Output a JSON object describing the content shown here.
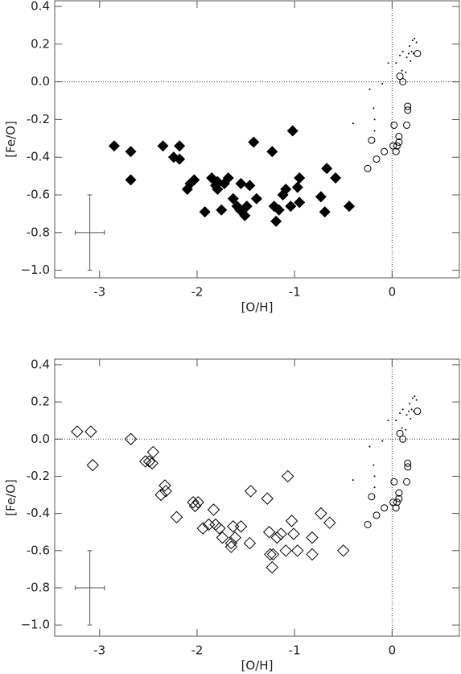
{
  "chart_data": [
    {
      "type": "scatter",
      "x_label": "[O/H]",
      "y_label": "[Fe/O]",
      "xlim": [
        -3.46,
        0.69
      ],
      "ylim": [
        -1.04,
        0.43
      ],
      "xticks": [
        -3,
        -2,
        -1,
        0
      ],
      "yticks": [
        0.4,
        0.2,
        {
          "value": 0,
          "label": "0.0"
        },
        -0.2,
        -0.4,
        -0.6,
        -0.8,
        {
          "value": -1,
          "label": "−1.0"
        }
      ],
      "hlines": [
        0
      ],
      "vlines": [
        0
      ],
      "error_bar": {
        "x": -3.1,
        "y": -0.8,
        "xerr": 0.15,
        "yerr": 0.2
      },
      "series": [
        {
          "marker": "filled-diamond",
          "color": "#000000",
          "x": [
            -2.85,
            -2.68,
            -2.68,
            -2.35,
            -2.24,
            -2.18,
            -2.18,
            -2.1,
            -2.07,
            -2.03,
            -1.92,
            -1.85,
            -1.81,
            -1.79,
            -1.79,
            -1.75,
            -1.72,
            -1.68,
            -1.63,
            -1.59,
            -1.56,
            -1.55,
            -1.51,
            -1.49,
            -1.46,
            -1.42,
            -1.39,
            -1.23,
            -1.21,
            -1.19,
            -1.16,
            -1.12,
            -1.09,
            -1.02,
            -1.04,
            -0.97,
            -0.95,
            -0.95,
            -0.69,
            -0.73,
            -0.67,
            -0.58,
            -0.44
          ],
          "y": [
            -0.34,
            -0.37,
            -0.52,
            -0.34,
            -0.4,
            -0.34,
            -0.41,
            -0.57,
            -0.54,
            -0.52,
            -0.69,
            -0.51,
            -0.55,
            -0.57,
            -0.53,
            -0.68,
            -0.54,
            -0.51,
            -0.62,
            -0.66,
            -0.68,
            -0.54,
            -0.71,
            -0.66,
            -0.55,
            -0.32,
            -0.62,
            -0.37,
            -0.66,
            -0.74,
            -0.68,
            -0.6,
            -0.57,
            -0.26,
            -0.66,
            -0.56,
            -0.51,
            -0.64,
            -0.69,
            -0.61,
            -0.46,
            -0.51,
            -0.66
          ]
        },
        {
          "marker": "open-circle",
          "color": "#000000",
          "x": [
            0.26,
            0.08,
            0.11,
            0.16,
            0.16,
            0.15,
            0.02,
            0.07,
            0.07,
            0.05,
            0.04,
            0.01,
            -0.08,
            -0.16,
            -0.21,
            -0.25
          ],
          "y": [
            0.15,
            0.03,
            0,
            -0.13,
            -0.15,
            -0.23,
            -0.23,
            -0.29,
            -0.32,
            -0.34,
            -0.37,
            -0.34,
            -0.37,
            -0.41,
            -0.31,
            -0.46
          ]
        },
        {
          "marker": "dot",
          "color": "#000000",
          "x": [
            -0.4,
            -0.23,
            -0.19,
            -0.18,
            -0.18,
            -0.1,
            -0.04,
            0.04,
            0.08,
            0.11,
            0.15,
            0.17,
            0.19,
            0.21,
            0.23,
            0.25,
            0.2,
            0.22,
            0.1,
            0.14,
            0.18
          ],
          "y": [
            -0.22,
            -0.04,
            -0.14,
            -0.2,
            -0.26,
            -0.01,
            0.1,
            0.1,
            0.14,
            0.16,
            0.13,
            0.15,
            0.11,
            0.22,
            0.23,
            0.21,
            0.16,
            0.15,
            0.06,
            0.05,
            0.19
          ]
        }
      ]
    },
    {
      "type": "scatter",
      "x_label": "[O/H]",
      "y_label": "[Fe/O]",
      "xlim": [
        -3.46,
        0.69
      ],
      "ylim": [
        -1.06,
        0.43
      ],
      "xticks": [
        -3,
        -2,
        -1,
        0
      ],
      "yticks": [
        0.4,
        0.2,
        {
          "value": 0,
          "label": "0.0"
        },
        -0.2,
        -0.4,
        -0.6,
        -0.8,
        {
          "value": -1,
          "label": "−1.0"
        }
      ],
      "hlines": [
        0
      ],
      "vlines": [
        0
      ],
      "error_bar": {
        "x": -3.1,
        "y": -0.8,
        "xerr": 0.15,
        "yerr": 0.2
      },
      "series": [
        {
          "marker": "open-diamond",
          "color": "#000000",
          "x": [
            -3.23,
            -3.09,
            -3.07,
            -2.68,
            -2.53,
            -2.49,
            -2.45,
            -2.46,
            -2.37,
            -2.33,
            -2.32,
            -2.21,
            -2.04,
            -2.02,
            -1.99,
            -1.94,
            -1.88,
            -1.83,
            -1.81,
            -1.77,
            -1.74,
            -1.65,
            -1.65,
            -1.63,
            -1.61,
            -1.55,
            -1.46,
            -1.45,
            -1.28,
            -1.26,
            -1.25,
            -1.22,
            -1.23,
            -1.18,
            -1.14,
            -1.09,
            -1.07,
            -1.03,
            -1.01,
            -0.97,
            -0.82,
            -0.82,
            -0.73,
            -0.64,
            -0.5
          ],
          "y": [
            0.04,
            0.04,
            -0.14,
            0,
            -0.12,
            -0.12,
            -0.07,
            -0.13,
            -0.3,
            -0.25,
            -0.28,
            -0.42,
            -0.34,
            -0.36,
            -0.34,
            -0.48,
            -0.46,
            -0.38,
            -0.46,
            -0.48,
            -0.53,
            -0.56,
            -0.58,
            -0.47,
            -0.53,
            -0.47,
            -0.56,
            -0.28,
            -0.32,
            -0.5,
            -0.62,
            -0.62,
            -0.69,
            -0.53,
            -0.51,
            -0.6,
            -0.2,
            -0.44,
            -0.51,
            -0.6,
            -0.53,
            -0.62,
            -0.4,
            -0.45,
            -0.6
          ]
        },
        {
          "marker": "open-circle",
          "color": "#000000",
          "x": [
            0.26,
            0.08,
            0.11,
            0.16,
            0.16,
            0.15,
            0.02,
            0.07,
            0.07,
            0.05,
            0.04,
            0.01,
            -0.08,
            -0.16,
            -0.21,
            -0.25
          ],
          "y": [
            0.15,
            0.03,
            0,
            -0.13,
            -0.15,
            -0.23,
            -0.23,
            -0.29,
            -0.32,
            -0.34,
            -0.37,
            -0.34,
            -0.37,
            -0.41,
            -0.31,
            -0.46
          ]
        },
        {
          "marker": "dot",
          "color": "#000000",
          "x": [
            -0.4,
            -0.23,
            -0.19,
            -0.18,
            -0.18,
            -0.1,
            -0.04,
            0.04,
            0.08,
            0.11,
            0.15,
            0.17,
            0.19,
            0.21,
            0.23,
            0.25,
            0.2,
            0.22,
            0.1,
            0.14,
            0.18
          ],
          "y": [
            -0.22,
            -0.04,
            -0.14,
            -0.2,
            -0.26,
            -0.01,
            0.1,
            0.1,
            0.14,
            0.16,
            0.13,
            0.15,
            0.11,
            0.22,
            0.23,
            0.21,
            0.16,
            0.15,
            0.06,
            0.05,
            0.19
          ]
        }
      ]
    }
  ]
}
